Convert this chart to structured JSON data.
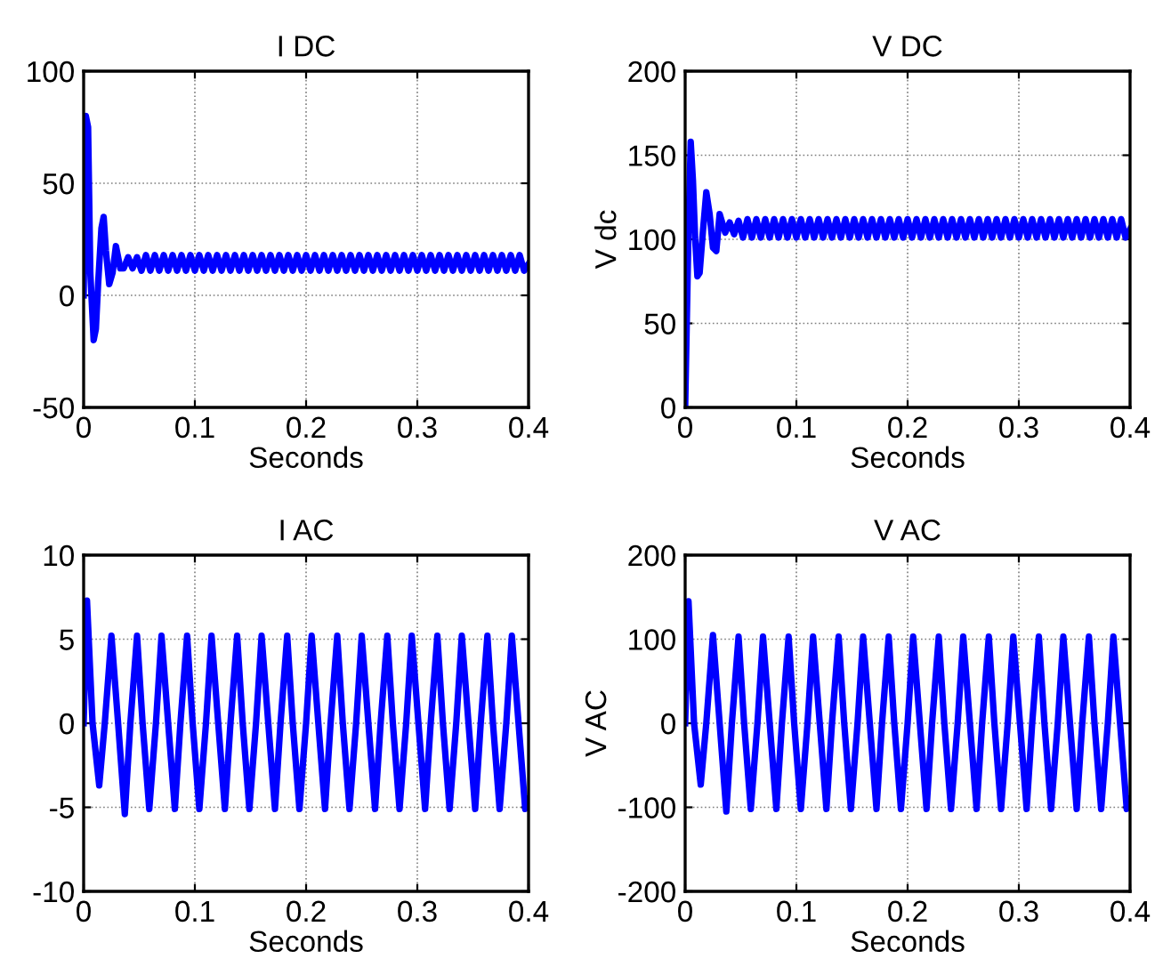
{
  "chart_data": [
    {
      "type": "line",
      "title": "I DC",
      "xlabel": "Seconds",
      "xlim": [
        0,
        0.4
      ],
      "ylim": [
        -50,
        100
      ],
      "xticks": [
        0,
        0.1,
        0.2,
        0.3,
        0.4
      ],
      "yticks": [
        -50,
        0,
        50,
        100
      ],
      "grid": true,
      "series": [
        {
          "color": "#0000ff",
          "x": [
            0,
            0.002,
            0.004,
            0.006,
            0.009,
            0.011,
            0.013,
            0.016,
            0.018,
            0.02,
            0.023,
            0.026,
            0.029,
            0.033,
            0.036,
            0.04,
            0.044,
            0.048,
            0.052,
            0.056,
            0.06,
            0.064,
            0.068,
            0.072,
            0.076,
            0.08,
            0.084,
            0.088,
            0.092,
            0.096,
            0.1,
            0.104,
            0.108,
            0.112,
            0.116,
            0.12,
            0.124,
            0.128,
            0.132,
            0.136,
            0.14,
            0.144,
            0.148,
            0.152,
            0.156,
            0.16,
            0.164,
            0.168,
            0.172,
            0.176,
            0.18,
            0.184,
            0.188,
            0.192,
            0.196,
            0.2,
            0.204,
            0.208,
            0.212,
            0.216,
            0.22,
            0.224,
            0.228,
            0.232,
            0.236,
            0.24,
            0.244,
            0.248,
            0.252,
            0.256,
            0.26,
            0.264,
            0.268,
            0.272,
            0.276,
            0.28,
            0.284,
            0.288,
            0.292,
            0.296,
            0.3,
            0.304,
            0.308,
            0.312,
            0.316,
            0.32,
            0.324,
            0.328,
            0.332,
            0.336,
            0.34,
            0.344,
            0.348,
            0.352,
            0.356,
            0.36,
            0.364,
            0.368,
            0.372,
            0.376,
            0.38,
            0.384,
            0.388,
            0.392,
            0.396,
            0.4
          ],
          "values": [
            0,
            80,
            75,
            10,
            -20,
            -15,
            5,
            30,
            35,
            20,
            5,
            10,
            22,
            12,
            12,
            17,
            12,
            17,
            11,
            18,
            11,
            18,
            11,
            18,
            11,
            18,
            11,
            18,
            11,
            18,
            11,
            18,
            11,
            18,
            11,
            18,
            11,
            18,
            11,
            18,
            11,
            18,
            11,
            18,
            11,
            18,
            11,
            18,
            11,
            18,
            11,
            18,
            11,
            18,
            11,
            18,
            11,
            18,
            11,
            18,
            11,
            18,
            11,
            18,
            11,
            18,
            11,
            18,
            11,
            18,
            11,
            18,
            11,
            18,
            11,
            18,
            11,
            18,
            11,
            18,
            11,
            18,
            11,
            18,
            11,
            18,
            11,
            18,
            11,
            18,
            11,
            18,
            11,
            18,
            11,
            18,
            11,
            18,
            11,
            18,
            11,
            18,
            11,
            18,
            11,
            14
          ]
        }
      ]
    },
    {
      "type": "line",
      "title": "V DC",
      "xlabel": "Seconds",
      "ylabel": "V dc",
      "xlim": [
        0,
        0.4
      ],
      "ylim": [
        0,
        200
      ],
      "xticks": [
        0,
        0.1,
        0.2,
        0.3,
        0.4
      ],
      "yticks": [
        0,
        50,
        100,
        150,
        200
      ],
      "grid": true,
      "series": [
        {
          "color": "#0000ff",
          "x": [
            0,
            0.001,
            0.003,
            0.005,
            0.007,
            0.009,
            0.011,
            0.013,
            0.016,
            0.019,
            0.022,
            0.025,
            0.028,
            0.031,
            0.036,
            0.04,
            0.044,
            0.048,
            0.052,
            0.056,
            0.06,
            0.064,
            0.068,
            0.072,
            0.076,
            0.08,
            0.084,
            0.088,
            0.092,
            0.096,
            0.1,
            0.104,
            0.108,
            0.112,
            0.116,
            0.12,
            0.124,
            0.128,
            0.132,
            0.136,
            0.14,
            0.144,
            0.148,
            0.152,
            0.156,
            0.16,
            0.164,
            0.168,
            0.172,
            0.176,
            0.18,
            0.184,
            0.188,
            0.192,
            0.196,
            0.2,
            0.204,
            0.208,
            0.212,
            0.216,
            0.22,
            0.224,
            0.228,
            0.232,
            0.236,
            0.24,
            0.244,
            0.248,
            0.252,
            0.256,
            0.26,
            0.264,
            0.268,
            0.272,
            0.276,
            0.28,
            0.284,
            0.288,
            0.292,
            0.296,
            0.3,
            0.304,
            0.308,
            0.312,
            0.316,
            0.32,
            0.324,
            0.328,
            0.332,
            0.336,
            0.34,
            0.344,
            0.348,
            0.352,
            0.356,
            0.36,
            0.364,
            0.368,
            0.372,
            0.376,
            0.38,
            0.384,
            0.388,
            0.392,
            0.396,
            0.4
          ],
          "values": [
            0,
            35,
            105,
            158,
            135,
            100,
            78,
            80,
            105,
            128,
            115,
            95,
            93,
            115,
            104,
            110,
            103,
            111,
            101,
            112,
            101,
            112,
            101,
            112,
            101,
            112,
            101,
            112,
            101,
            112,
            101,
            112,
            101,
            112,
            101,
            112,
            101,
            112,
            101,
            112,
            101,
            112,
            101,
            112,
            101,
            112,
            101,
            112,
            101,
            112,
            101,
            112,
            101,
            112,
            101,
            112,
            101,
            112,
            101,
            112,
            101,
            112,
            101,
            112,
            101,
            112,
            101,
            112,
            101,
            112,
            101,
            112,
            101,
            112,
            101,
            112,
            101,
            112,
            101,
            112,
            101,
            112,
            101,
            112,
            101,
            112,
            101,
            112,
            101,
            112,
            101,
            112,
            101,
            112,
            101,
            112,
            101,
            112,
            101,
            112,
            101,
            112,
            101,
            112,
            101,
            106
          ]
        }
      ]
    },
    {
      "type": "line",
      "title": "I AC",
      "xlabel": "Seconds",
      "xlim": [
        0,
        0.4
      ],
      "ylim": [
        -10,
        10
      ],
      "xticks": [
        0,
        0.1,
        0.2,
        0.3,
        0.4
      ],
      "yticks": [
        -10,
        -5,
        0,
        5,
        10
      ],
      "grid": true,
      "series": [
        {
          "color": "#0000ff",
          "x": [
            0,
            0.003,
            0.008,
            0.014,
            0.019,
            0.025,
            0.031,
            0.037,
            0.042,
            0.048,
            0.053,
            0.059,
            0.065,
            0.07,
            0.076,
            0.082,
            0.087,
            0.093,
            0.098,
            0.104,
            0.11,
            0.115,
            0.121,
            0.127,
            0.132,
            0.138,
            0.143,
            0.149,
            0.155,
            0.16,
            0.166,
            0.172,
            0.177,
            0.183,
            0.188,
            0.194,
            0.2,
            0.205,
            0.211,
            0.217,
            0.222,
            0.228,
            0.233,
            0.239,
            0.245,
            0.25,
            0.256,
            0.262,
            0.267,
            0.273,
            0.278,
            0.284,
            0.29,
            0.295,
            0.301,
            0.307,
            0.312,
            0.318,
            0.323,
            0.329,
            0.335,
            0.34,
            0.346,
            0.352,
            0.357,
            0.363,
            0.368,
            0.374,
            0.38,
            0.385,
            0.391,
            0.397,
            0.4
          ],
          "values": [
            0,
            7.3,
            0,
            -3.7,
            0,
            5.2,
            0,
            -5.4,
            0,
            5.2,
            0,
            -5.1,
            0,
            5.2,
            0,
            -5.1,
            0,
            5.2,
            0,
            -5.1,
            0,
            5.2,
            0,
            -5.1,
            0,
            5.2,
            0,
            -5.1,
            0,
            5.2,
            0,
            -5.1,
            0,
            5.2,
            0,
            -5.1,
            0,
            5.2,
            0,
            -5.1,
            0,
            5.2,
            0,
            -5.1,
            0,
            5.2,
            0,
            -5.1,
            0,
            5.2,
            0,
            -5.1,
            0,
            5.2,
            0,
            -5.1,
            0,
            5.2,
            0,
            -5.1,
            0,
            5.2,
            0,
            -5.1,
            0,
            5.2,
            0,
            -5.1,
            0,
            5.2,
            0,
            -5.1,
            -4.5
          ]
        }
      ]
    },
    {
      "type": "line",
      "title": "V AC",
      "xlabel": "Seconds",
      "ylabel": "V AC",
      "xlim": [
        0,
        0.4
      ],
      "ylim": [
        -200,
        200
      ],
      "xticks": [
        0,
        0.1,
        0.2,
        0.3,
        0.4
      ],
      "yticks": [
        -200,
        -100,
        0,
        100,
        200
      ],
      "grid": true,
      "series": [
        {
          "color": "#0000ff",
          "x": [
            0,
            0.003,
            0.008,
            0.014,
            0.019,
            0.025,
            0.031,
            0.037,
            0.042,
            0.048,
            0.053,
            0.059,
            0.065,
            0.07,
            0.076,
            0.082,
            0.087,
            0.093,
            0.098,
            0.104,
            0.11,
            0.115,
            0.121,
            0.127,
            0.132,
            0.138,
            0.143,
            0.149,
            0.155,
            0.16,
            0.166,
            0.172,
            0.177,
            0.183,
            0.188,
            0.194,
            0.2,
            0.205,
            0.211,
            0.217,
            0.222,
            0.228,
            0.233,
            0.239,
            0.245,
            0.25,
            0.256,
            0.262,
            0.267,
            0.273,
            0.278,
            0.284,
            0.29,
            0.295,
            0.301,
            0.307,
            0.312,
            0.318,
            0.323,
            0.329,
            0.335,
            0.34,
            0.346,
            0.352,
            0.357,
            0.363,
            0.368,
            0.374,
            0.38,
            0.385,
            0.391,
            0.397,
            0.4
          ],
          "values": [
            0,
            145,
            0,
            -73,
            0,
            105,
            0,
            -105,
            0,
            103,
            0,
            -102,
            0,
            103,
            0,
            -102,
            0,
            103,
            0,
            -102,
            0,
            103,
            0,
            -102,
            0,
            103,
            0,
            -102,
            0,
            103,
            0,
            -102,
            0,
            103,
            0,
            -102,
            0,
            103,
            0,
            -102,
            0,
            103,
            0,
            -102,
            0,
            103,
            0,
            -102,
            0,
            103,
            0,
            -102,
            0,
            103,
            0,
            -102,
            0,
            103,
            0,
            -102,
            0,
            103,
            0,
            -102,
            0,
            103,
            0,
            -102,
            0,
            103,
            0,
            -102,
            -90
          ]
        }
      ]
    }
  ]
}
